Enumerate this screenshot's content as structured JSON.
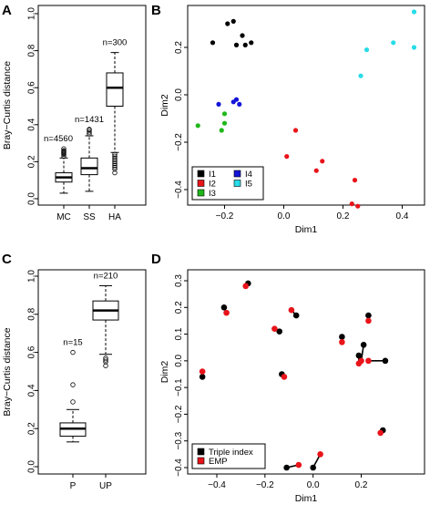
{
  "chart_data": [
    {
      "panel": "A",
      "type": "box",
      "ylabel": "Bray−Curtis distance",
      "xlabel": "",
      "ylim": [
        0,
        1.0
      ],
      "yticks": [
        "0.0",
        "0.2",
        "0.4",
        "0.6",
        "0.8",
        "1.0"
      ],
      "categories": [
        "MC",
        "SS",
        "HA"
      ],
      "boxes": [
        {
          "name": "MC",
          "min": 0.03,
          "q1": 0.09,
          "median": 0.115,
          "q3": 0.14,
          "whisker_high": 0.22,
          "outliers": [
            0.23,
            0.24,
            0.245,
            0.25,
            0.255,
            0.26,
            0.27
          ],
          "n_label": "n=4560"
        },
        {
          "name": "SS",
          "min": 0.04,
          "q1": 0.13,
          "median": 0.165,
          "q3": 0.22,
          "whisker_high": 0.34,
          "outliers": [
            0.35,
            0.36,
            0.37,
            0.375
          ],
          "n_label": "n=1431"
        },
        {
          "name": "HA",
          "min": 0.25,
          "q1": 0.5,
          "median": 0.6,
          "q3": 0.68,
          "whisker_high": 0.79,
          "outliers": [
            0.14,
            0.16,
            0.17,
            0.18,
            0.19,
            0.2,
            0.21,
            0.22,
            0.23,
            0.24
          ],
          "n_label": "n=300"
        }
      ]
    },
    {
      "panel": "B",
      "type": "scatter",
      "xlabel": "Dim1",
      "ylabel": "Dim2",
      "xlim": [
        -0.3,
        0.47
      ],
      "ylim": [
        -0.48,
        0.34
      ],
      "xticks": [
        "−0.2",
        "0.0",
        "0.2",
        "0.4"
      ],
      "yticks": [
        "−0.4",
        "−0.2",
        "0.0",
        "0.2"
      ],
      "legend_position": "bottom-left",
      "series": [
        {
          "name": "I1",
          "color": "#000000",
          "points": [
            [
              -0.24,
              0.22
            ],
            [
              -0.17,
              0.31
            ],
            [
              -0.16,
              0.21
            ],
            [
              -0.14,
              0.25
            ],
            [
              -0.13,
              0.21
            ],
            [
              -0.11,
              0.22
            ],
            [
              -0.19,
              0.3
            ]
          ]
        },
        {
          "name": "I2",
          "color": "#e8141a",
          "points": [
            [
              0.04,
              -0.15
            ],
            [
              0.01,
              -0.26
            ],
            [
              0.11,
              -0.32
            ],
            [
              0.13,
              -0.28
            ],
            [
              0.24,
              -0.36
            ],
            [
              0.25,
              -0.47
            ],
            [
              0.23,
              -0.46
            ]
          ]
        },
        {
          "name": "I3",
          "color": "#1fb81a",
          "points": [
            [
              -0.29,
              -0.13
            ],
            [
              -0.2,
              -0.08
            ],
            [
              -0.2,
              -0.12
            ],
            [
              -0.21,
              -0.15
            ]
          ]
        },
        {
          "name": "I4",
          "color": "#1414d8",
          "points": [
            [
              -0.22,
              -0.04
            ],
            [
              -0.17,
              -0.03
            ],
            [
              -0.16,
              -0.02
            ],
            [
              -0.15,
              -0.04
            ]
          ]
        },
        {
          "name": "I5",
          "color": "#28dce8",
          "points": [
            [
              0.26,
              0.08
            ],
            [
              0.28,
              0.19
            ],
            [
              0.37,
              0.22
            ],
            [
              0.44,
              0.2
            ],
            [
              0.44,
              0.35
            ]
          ]
        }
      ]
    },
    {
      "panel": "C",
      "type": "box",
      "ylabel": "Bray−Curtis distance",
      "xlabel": "",
      "ylim": [
        0,
        1.0
      ],
      "yticks": [
        "0.0",
        "0.2",
        "0.4",
        "0.6",
        "0.8",
        "1.0"
      ],
      "categories": [
        "P",
        "UP"
      ],
      "boxes": [
        {
          "name": "P",
          "min": 0.13,
          "q1": 0.16,
          "median": 0.2,
          "q3": 0.23,
          "whisker_high": 0.3,
          "outliers": [
            0.34,
            0.43,
            0.6
          ],
          "n_label": "n=15"
        },
        {
          "name": "UP",
          "min": 0.59,
          "q1": 0.77,
          "median": 0.82,
          "q3": 0.87,
          "whisker_high": 0.95,
          "outliers": [
            0.53,
            0.55,
            0.56,
            0.57
          ],
          "n_label": "n=210"
        }
      ]
    },
    {
      "panel": "D",
      "type": "scatter",
      "xlabel": "Dim1",
      "ylabel": "Dim2",
      "xlim": [
        -0.47,
        0.31
      ],
      "ylim": [
        -0.42,
        0.32
      ],
      "xticks": [
        "−0.4",
        "−0.2",
        "0.0",
        "0.2"
      ],
      "yticks": [
        "−0.4",
        "−0.3",
        "−0.2",
        "−0.1",
        "0.0",
        "0.1",
        "0.2",
        "0.3"
      ],
      "legend_position": "bottom-left",
      "series_names": [
        "Triple index",
        "EMP"
      ],
      "series_colors": [
        "#000000",
        "#e8141a"
      ],
      "pairs": [
        {
          "triple": [
            -0.46,
            -0.06
          ],
          "emp": [
            -0.46,
            -0.04
          ]
        },
        {
          "triple": [
            -0.37,
            0.2
          ],
          "emp": [
            -0.36,
            0.18
          ]
        },
        {
          "triple": [
            -0.27,
            0.29
          ],
          "emp": [
            -0.28,
            0.28
          ]
        },
        {
          "triple": [
            -0.14,
            0.11
          ],
          "emp": [
            -0.16,
            0.12
          ]
        },
        {
          "triple": [
            -0.07,
            0.17
          ],
          "emp": [
            -0.09,
            0.19
          ]
        },
        {
          "triple": [
            -0.13,
            -0.05
          ],
          "emp": [
            -0.12,
            -0.06
          ]
        },
        {
          "triple": [
            -0.11,
            -0.4
          ],
          "emp": [
            -0.06,
            -0.39
          ]
        },
        {
          "triple": [
            0.0,
            -0.4
          ],
          "emp": [
            0.03,
            -0.35
          ]
        },
        {
          "triple": [
            0.12,
            0.09
          ],
          "emp": [
            0.12,
            0.07
          ]
        },
        {
          "triple": [
            0.21,
            0.06
          ],
          "emp": [
            0.2,
            0.0
          ]
        },
        {
          "triple": [
            0.23,
            0.17
          ],
          "emp": [
            0.23,
            0.15
          ]
        },
        {
          "triple": [
            0.19,
            0.02
          ],
          "emp": [
            0.19,
            -0.01
          ]
        },
        {
          "triple": [
            0.3,
            0.0
          ],
          "emp": [
            0.23,
            0.0
          ]
        },
        {
          "triple": [
            0.29,
            -0.26
          ],
          "emp": [
            0.28,
            -0.27
          ]
        }
      ]
    }
  ]
}
